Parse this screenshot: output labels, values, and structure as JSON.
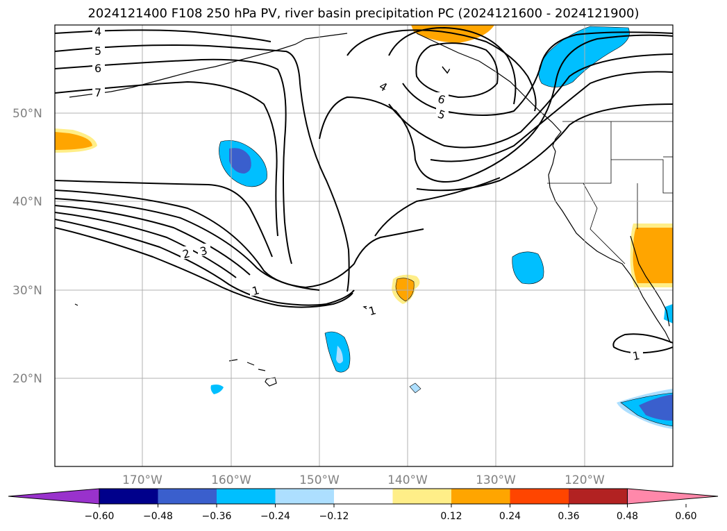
{
  "title": "2024121400 F108 250 hPa PV, river basin precipitation PC (2024121600 - 2024121900)",
  "map": {
    "latitude_labels": [
      "50°N",
      "40°N",
      "30°N",
      "20°N"
    ],
    "longitude_labels": [
      "170°W",
      "160°W",
      "150°W",
      "140°W",
      "130°W",
      "120°W"
    ],
    "gridlines": true
  },
  "contours": {
    "pv_labels": [
      "4",
      "5",
      "6",
      "7",
      "4",
      "6",
      "5",
      "7",
      "3",
      "2",
      "1",
      "1",
      "1"
    ]
  },
  "colorbar": {
    "labels": [
      "−0.60",
      "−0.48",
      "−0.36",
      "−0.24",
      "−0.12",
      "0.12",
      "0.24",
      "0.36",
      "0.48",
      "0.60"
    ],
    "colors": [
      "#9932CC",
      "#00008B",
      "#3A5FCD",
      "#00BFFF",
      "#ADDFFF",
      "#FFFFFF",
      "#FFEE88",
      "#FFA500",
      "#FF4500",
      "#B22222",
      "#FF88AA"
    ],
    "extend": "both"
  }
}
